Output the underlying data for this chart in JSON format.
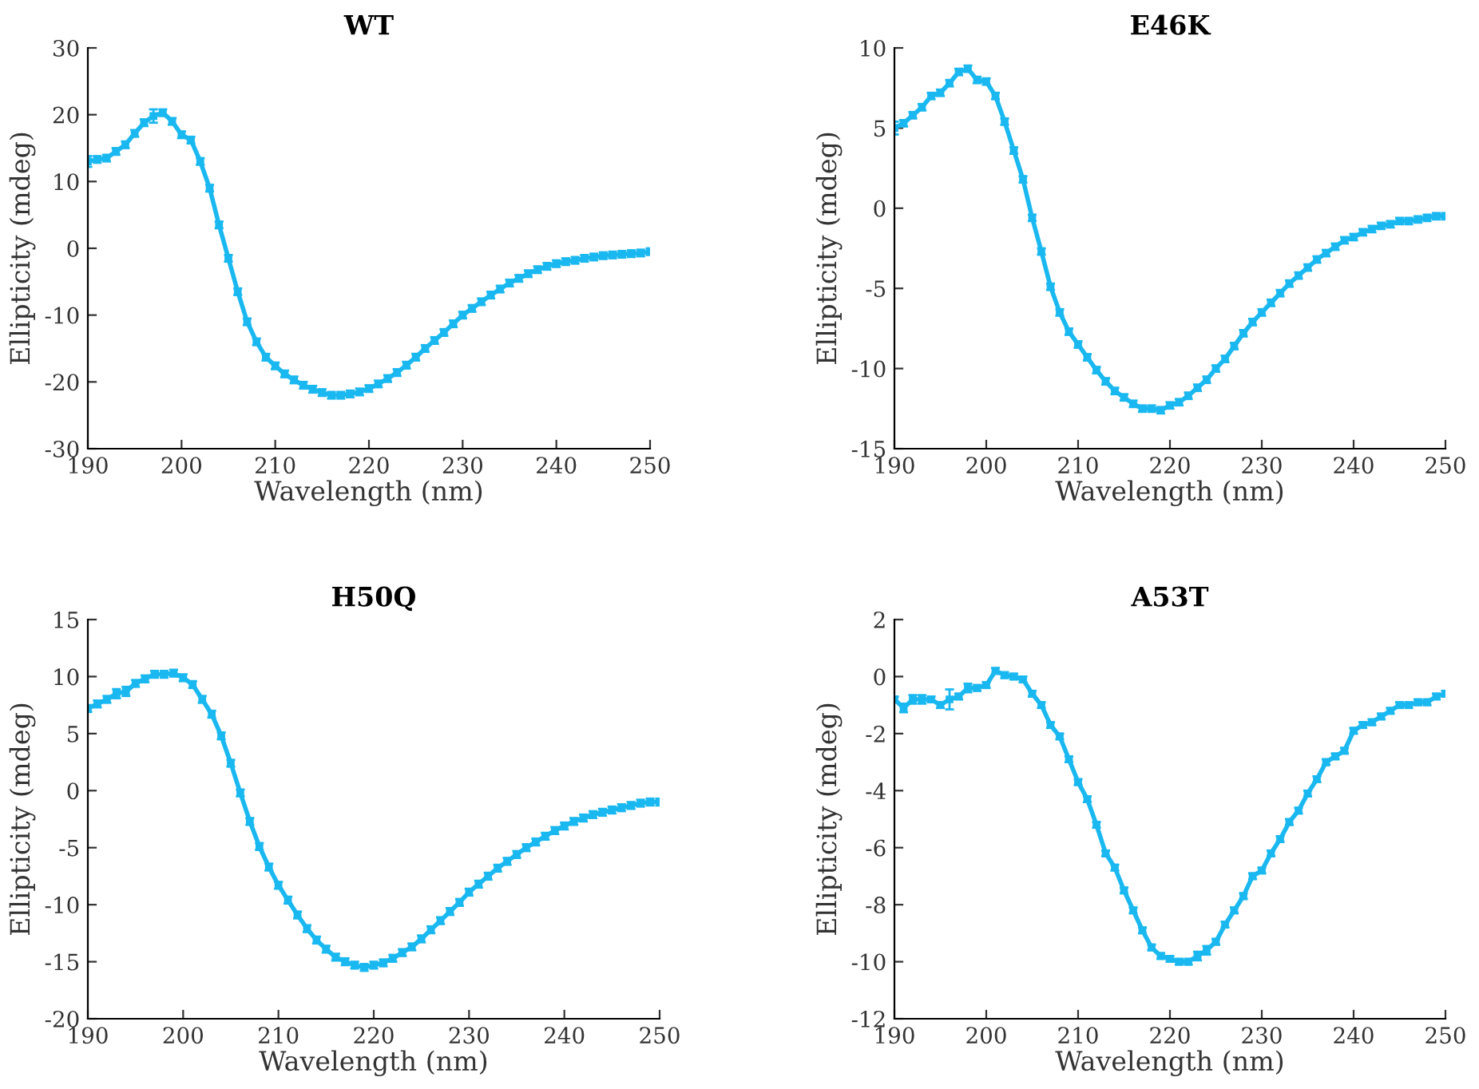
{
  "chart_data": [
    {
      "type": "line",
      "title": "WT",
      "xlabel": "Wavelength (nm)",
      "ylabel": "Ellipticity (mdeg)",
      "xlim": [
        190,
        250
      ],
      "xticks": [
        190,
        200,
        210,
        220,
        230,
        240,
        250
      ],
      "ylim": [
        -30,
        30
      ],
      "yticks": [
        -30,
        -20,
        -10,
        0,
        10,
        20,
        30
      ],
      "grid": false,
      "legend": false,
      "marker": "square",
      "line_style": "solid",
      "x": [
        190,
        191,
        192,
        193,
        194,
        195,
        196,
        197,
        198,
        199,
        200,
        201,
        202,
        203,
        204,
        205,
        206,
        207,
        208,
        209,
        210,
        211,
        212,
        213,
        214,
        215,
        216,
        217,
        218,
        219,
        220,
        221,
        222,
        223,
        224,
        225,
        226,
        227,
        228,
        229,
        230,
        231,
        232,
        233,
        234,
        235,
        236,
        237,
        238,
        239,
        240,
        241,
        242,
        243,
        244,
        245,
        246,
        247,
        248,
        249,
        250
      ],
      "series": [
        {
          "color": "#1ab8f0",
          "values": [
            13,
            13.3,
            13.5,
            14.5,
            15.5,
            17.2,
            18.8,
            19.8,
            20.3,
            19,
            17,
            16.2,
            13,
            9,
            3.5,
            -1.5,
            -6.5,
            -11,
            -14,
            -16.3,
            -17.6,
            -18.8,
            -19.7,
            -20.5,
            -21.1,
            -21.6,
            -22,
            -22,
            -21.8,
            -21.5,
            -21,
            -20.3,
            -19.5,
            -18.6,
            -17.5,
            -16.3,
            -15,
            -13.8,
            -12.6,
            -11.3,
            -10,
            -9,
            -8,
            -7,
            -6.1,
            -5.2,
            -4.5,
            -3.8,
            -3.2,
            -2.7,
            -2.3,
            -2,
            -1.8,
            -1.5,
            -1.3,
            -1.1,
            -1,
            -0.9,
            -0.8,
            -0.7,
            -0.5
          ],
          "errors": [
            0.8,
            0.5,
            0.5,
            0.5,
            0.5,
            0.5,
            0.5,
            1,
            0.5,
            0.5,
            0.5,
            0.5,
            0.5,
            0.5,
            0.5,
            0.5,
            0.5,
            0.5,
            0.5,
            0.5,
            0.5,
            0.5,
            0.5,
            0.5,
            0.5,
            0.5,
            0.5,
            0.5,
            0.5,
            0.5,
            0.5,
            0.5,
            0.5,
            0.5,
            0.5,
            0.5,
            0.5,
            0.5,
            0.5,
            0.5,
            0.5,
            0.5,
            0.5,
            0.5,
            0.5,
            0.5,
            0.5,
            0.5,
            0.5,
            0.5,
            0.5,
            0.5,
            0.5,
            0.5,
            0.5,
            0.5,
            0.5,
            0.5,
            0.5,
            0.5,
            0.5
          ]
        }
      ]
    },
    {
      "type": "line",
      "title": "E46K",
      "xlabel": "Wavelength (nm)",
      "ylabel": "Ellipticity (mdeg)",
      "xlim": [
        190,
        250
      ],
      "xticks": [
        190,
        200,
        210,
        220,
        230,
        240,
        250
      ],
      "ylim": [
        -15,
        10
      ],
      "yticks": [
        -15,
        -10,
        -5,
        0,
        5,
        10
      ],
      "grid": false,
      "legend": false,
      "marker": "square",
      "line_style": "solid",
      "x": [
        190,
        191,
        192,
        193,
        194,
        195,
        196,
        197,
        198,
        199,
        200,
        201,
        202,
        203,
        204,
        205,
        206,
        207,
        208,
        209,
        210,
        211,
        212,
        213,
        214,
        215,
        216,
        217,
        218,
        219,
        220,
        221,
        222,
        223,
        224,
        225,
        226,
        227,
        228,
        229,
        230,
        231,
        232,
        233,
        234,
        235,
        236,
        237,
        238,
        239,
        240,
        241,
        242,
        243,
        244,
        245,
        246,
        247,
        248,
        249,
        250
      ],
      "series": [
        {
          "color": "#1ab8f0",
          "values": [
            5,
            5.3,
            5.8,
            6.3,
            7,
            7.2,
            7.8,
            8.5,
            8.7,
            8,
            7.9,
            7,
            5.4,
            3.6,
            1.8,
            -0.6,
            -2.7,
            -4.9,
            -6.5,
            -7.7,
            -8.5,
            -9.3,
            -10.1,
            -10.8,
            -11.4,
            -11.8,
            -12.2,
            -12.5,
            -12.5,
            -12.6,
            -12.3,
            -12.1,
            -11.7,
            -11.2,
            -10.7,
            -10,
            -9.4,
            -8.6,
            -7.8,
            -7.1,
            -6.5,
            -5.9,
            -5.3,
            -4.7,
            -4.2,
            -3.7,
            -3.2,
            -2.8,
            -2.4,
            -2,
            -1.8,
            -1.5,
            -1.3,
            -1.1,
            -1,
            -0.8,
            -0.8,
            -0.7,
            -0.6,
            -0.5,
            -0.5
          ],
          "errors": [
            0.4,
            0.2,
            0.2,
            0.2,
            0.2,
            0.2,
            0.2,
            0.2,
            0.2,
            0.2,
            0.2,
            0.2,
            0.2,
            0.2,
            0.2,
            0.2,
            0.2,
            0.2,
            0.2,
            0.2,
            0.2,
            0.2,
            0.2,
            0.2,
            0.2,
            0.2,
            0.2,
            0.2,
            0.2,
            0.2,
            0.2,
            0.2,
            0.2,
            0.2,
            0.2,
            0.2,
            0.2,
            0.2,
            0.2,
            0.2,
            0.2,
            0.2,
            0.2,
            0.2,
            0.2,
            0.2,
            0.2,
            0.2,
            0.2,
            0.2,
            0.2,
            0.2,
            0.2,
            0.2,
            0.2,
            0.2,
            0.2,
            0.2,
            0.2,
            0.2,
            0.2
          ]
        }
      ]
    },
    {
      "type": "line",
      "title": "H50Q",
      "xlabel": "Wavelength (nm)",
      "ylabel": "Ellipticity (mdeg)",
      "xlim": [
        190,
        250
      ],
      "xticks": [
        190,
        200,
        210,
        220,
        230,
        240,
        250
      ],
      "ylim": [
        -20,
        15
      ],
      "yticks": [
        -20,
        -15,
        -10,
        -5,
        0,
        5,
        10,
        15
      ],
      "grid": false,
      "legend": false,
      "marker": "square",
      "line_style": "solid",
      "x": [
        190,
        191,
        192,
        193,
        194,
        195,
        196,
        197,
        198,
        199,
        200,
        201,
        202,
        203,
        204,
        205,
        206,
        207,
        208,
        209,
        210,
        211,
        212,
        213,
        214,
        215,
        216,
        217,
        218,
        219,
        220,
        221,
        222,
        223,
        224,
        225,
        226,
        227,
        228,
        229,
        230,
        231,
        232,
        233,
        234,
        235,
        236,
        237,
        238,
        239,
        240,
        241,
        242,
        243,
        244,
        245,
        246,
        247,
        248,
        249,
        250
      ],
      "series": [
        {
          "color": "#1ab8f0",
          "values": [
            7.2,
            7.6,
            8,
            8.5,
            8.7,
            9.4,
            9.8,
            10.2,
            10.2,
            10.3,
            9.9,
            9.3,
            8,
            6.7,
            4.8,
            2.4,
            -0.2,
            -2.7,
            -4.9,
            -6.7,
            -8.3,
            -9.6,
            -10.9,
            -12.1,
            -13.1,
            -13.9,
            -14.6,
            -15,
            -15.3,
            -15.5,
            -15.3,
            -15.1,
            -14.7,
            -14.2,
            -13.7,
            -13,
            -12.2,
            -11.4,
            -10.6,
            -9.8,
            -8.9,
            -8.2,
            -7.5,
            -6.8,
            -6.2,
            -5.6,
            -5,
            -4.5,
            -4,
            -3.5,
            -3.1,
            -2.7,
            -2.4,
            -2.1,
            -1.9,
            -1.7,
            -1.5,
            -1.3,
            -1.1,
            -1,
            -1
          ],
          "errors": [
            0.3,
            0.3,
            0.3,
            0.4,
            0.4,
            0.3,
            0.3,
            0.3,
            0.3,
            0.3,
            0.3,
            0.3,
            0.3,
            0.3,
            0.3,
            0.3,
            0.3,
            0.3,
            0.3,
            0.3,
            0.3,
            0.3,
            0.3,
            0.3,
            0.3,
            0.3,
            0.3,
            0.3,
            0.3,
            0.3,
            0.3,
            0.3,
            0.3,
            0.3,
            0.3,
            0.3,
            0.3,
            0.3,
            0.3,
            0.3,
            0.3,
            0.3,
            0.3,
            0.3,
            0.3,
            0.3,
            0.3,
            0.3,
            0.3,
            0.3,
            0.3,
            0.3,
            0.3,
            0.3,
            0.3,
            0.3,
            0.3,
            0.3,
            0.3,
            0.3,
            0.3
          ]
        }
      ]
    },
    {
      "type": "line",
      "title": "A53T",
      "xlabel": "Wavelength (nm)",
      "ylabel": "Ellipticity (mdeg)",
      "xlim": [
        190,
        250
      ],
      "xticks": [
        190,
        200,
        210,
        220,
        230,
        240,
        250
      ],
      "ylim": [
        -12,
        2
      ],
      "yticks": [
        -12,
        -10,
        -8,
        -6,
        -4,
        -2,
        0,
        2
      ],
      "grid": false,
      "legend": false,
      "marker": "square",
      "line_style": "solid",
      "x": [
        190,
        191,
        192,
        193,
        194,
        195,
        196,
        197,
        198,
        199,
        200,
        201,
        202,
        203,
        204,
        205,
        206,
        207,
        208,
        209,
        210,
        211,
        212,
        213,
        214,
        215,
        216,
        217,
        218,
        219,
        220,
        221,
        222,
        223,
        224,
        225,
        226,
        227,
        228,
        229,
        230,
        231,
        232,
        233,
        234,
        235,
        236,
        237,
        238,
        239,
        240,
        241,
        242,
        243,
        244,
        245,
        246,
        247,
        248,
        249,
        250
      ],
      "series": [
        {
          "color": "#1ab8f0",
          "values": [
            -0.8,
            -1.1,
            -0.8,
            -0.8,
            -0.8,
            -1,
            -0.8,
            -0.7,
            -0.4,
            -0.4,
            -0.3,
            0.2,
            0.05,
            0,
            -0.1,
            -0.6,
            -1,
            -1.7,
            -2.1,
            -2.9,
            -3.7,
            -4.3,
            -5.2,
            -6.2,
            -6.7,
            -7.5,
            -8.2,
            -8.9,
            -9.5,
            -9.8,
            -9.9,
            -10,
            -10,
            -9.8,
            -9.6,
            -9.3,
            -8.7,
            -8.2,
            -7.7,
            -7,
            -6.8,
            -6.2,
            -5.7,
            -5.1,
            -4.7,
            -4.1,
            -3.6,
            -3,
            -2.8,
            -2.6,
            -1.9,
            -1.7,
            -1.6,
            -1.4,
            -1.2,
            -1,
            -1,
            -0.9,
            -0.9,
            -0.7,
            -0.6
          ],
          "errors": [
            0.1,
            0.15,
            0.15,
            0.15,
            0.1,
            0.1,
            0.35,
            0.1,
            0.15,
            0.1,
            0.1,
            0.1,
            0.1,
            0.1,
            0.1,
            0.1,
            0.1,
            0.1,
            0.1,
            0.1,
            0.1,
            0.1,
            0.1,
            0.1,
            0.1,
            0.1,
            0.1,
            0.1,
            0.1,
            0.1,
            0.1,
            0.1,
            0.1,
            0.15,
            0.15,
            0.1,
            0.1,
            0.1,
            0.1,
            0.1,
            0.1,
            0.1,
            0.1,
            0.1,
            0.1,
            0.1,
            0.1,
            0.1,
            0.1,
            0.1,
            0.1,
            0.1,
            0.1,
            0.1,
            0.1,
            0.1,
            0.1,
            0.1,
            0.1,
            0.1,
            0.1
          ]
        }
      ]
    }
  ]
}
